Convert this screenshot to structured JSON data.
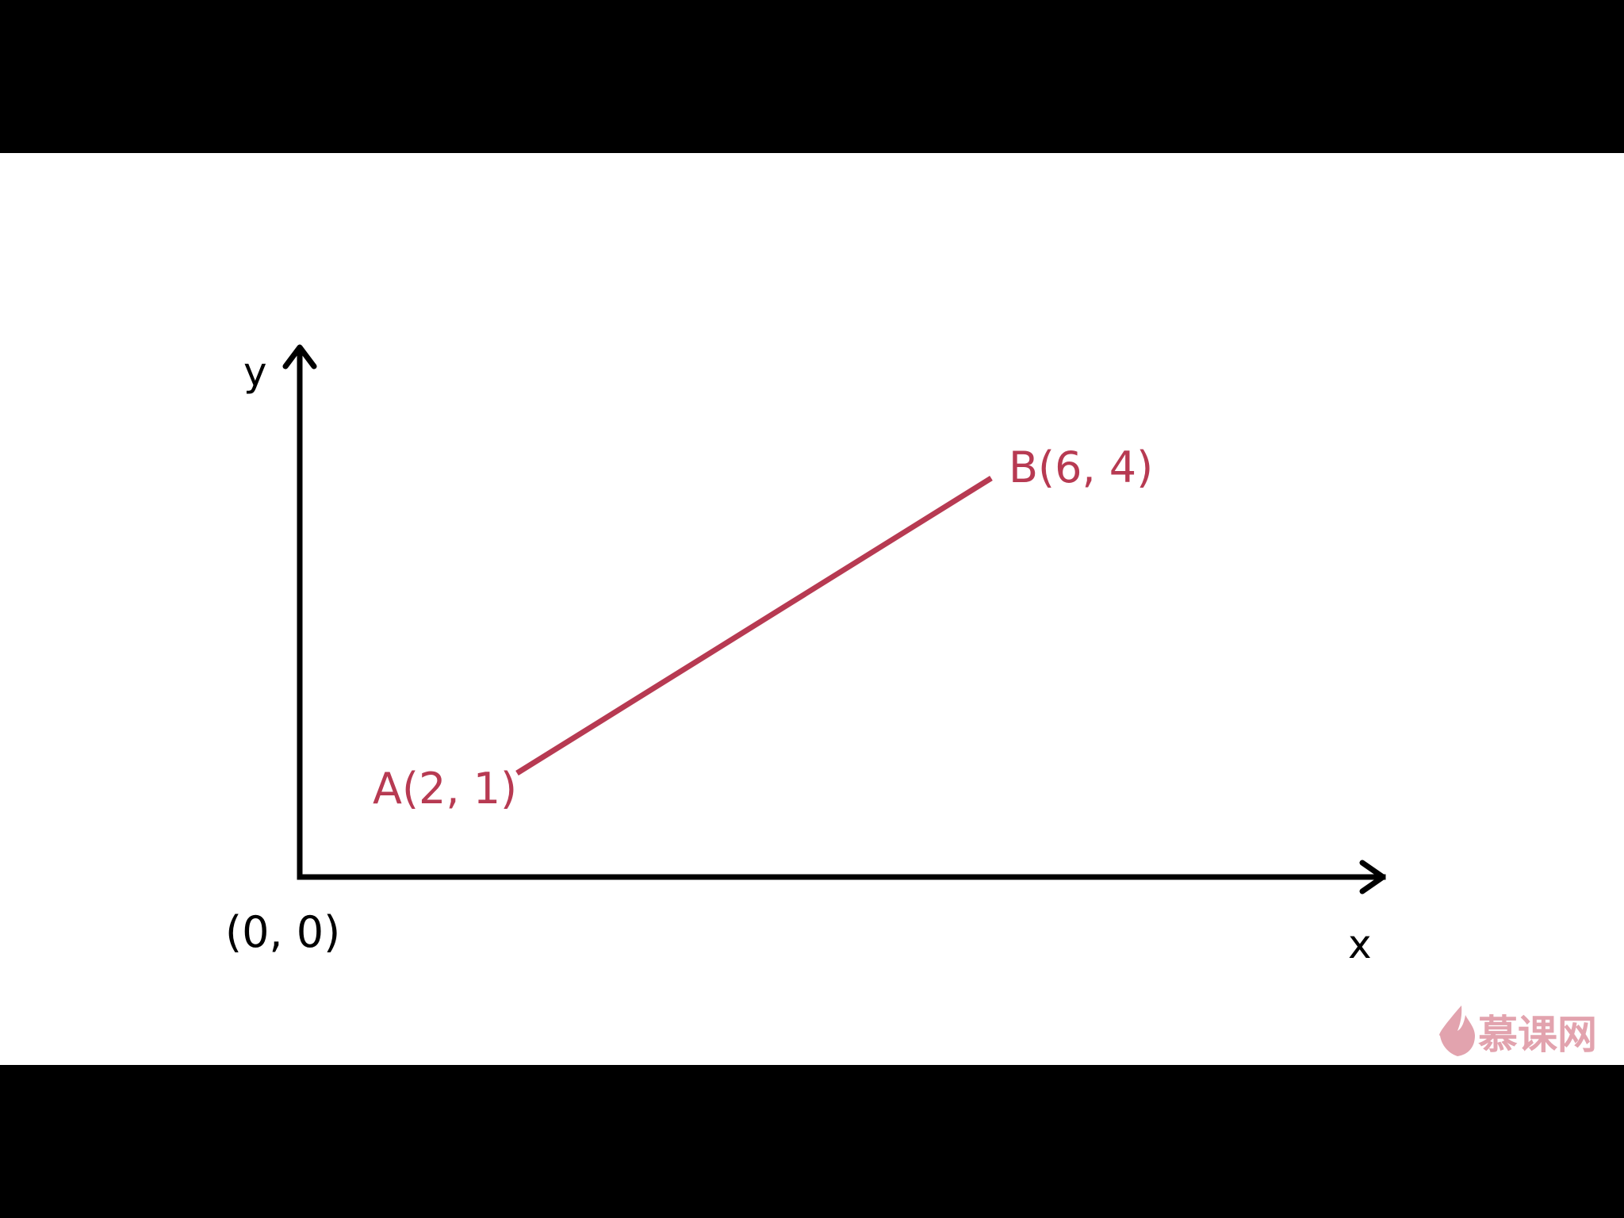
{
  "diagram": {
    "axes": {
      "x_label": "x",
      "y_label": "y",
      "origin_label": "(0, 0)"
    },
    "segment": {
      "start": {
        "label": "A(2, 1)",
        "x": 2,
        "y": 1
      },
      "end": {
        "label": "B(6, 4)",
        "x": 6,
        "y": 4
      }
    }
  },
  "watermark": {
    "text": "慕课网",
    "icon": "flame-icon"
  },
  "colors": {
    "letterbox": "#000000",
    "background": "#ffffff",
    "axis": "#000000",
    "segment": "#b73a52",
    "watermark": "#e2a3ae"
  }
}
